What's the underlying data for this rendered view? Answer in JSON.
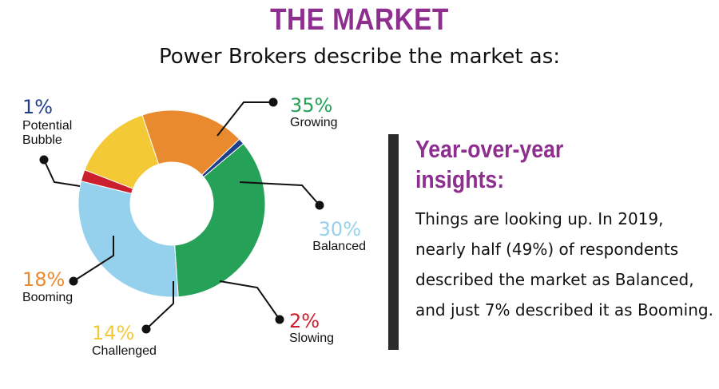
{
  "header": {
    "title": "THE MARKET",
    "subtitle": "Power Brokers describe the market as:"
  },
  "insights": {
    "heading_line1": "Year-over-year",
    "heading_line2": "insights:",
    "body": "Things are looking up. In 2019, nearly half (49%) of respondents described the market as Balanced, and just 7% described it as Booming."
  },
  "chart_data": {
    "type": "pie",
    "style": "donut",
    "title": "THE MARKET",
    "subtitle": "Power Brokers describe the market as:",
    "slices": [
      {
        "label": "Growing",
        "value": 35,
        "percent_label": "35%",
        "color": "#26a158"
      },
      {
        "label": "Balanced",
        "value": 30,
        "percent_label": "30%",
        "color": "#95d1ed"
      },
      {
        "label": "Slowing",
        "value": 2,
        "percent_label": "2%",
        "color": "#cc1f2d"
      },
      {
        "label": "Challenged",
        "value": 14,
        "percent_label": "14%",
        "color": "#f4c936"
      },
      {
        "label": "Booming",
        "value": 18,
        "percent_label": "18%",
        "color": "#ea8a2f"
      },
      {
        "label": "Potential Bubble",
        "value": 1,
        "percent_label": "1%",
        "color": "#1f3f8c"
      }
    ]
  }
}
